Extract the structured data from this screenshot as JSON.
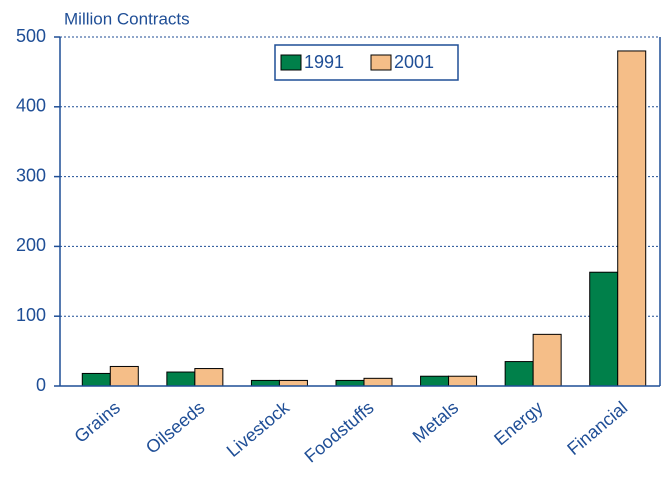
{
  "chart_data": {
    "type": "bar",
    "title": "Million Contracts",
    "categories": [
      "Grains",
      "Oilseeds",
      "Livestock",
      "Foodstuffs",
      "Metals",
      "Energy",
      "Financial"
    ],
    "series": [
      {
        "name": "1991",
        "color": "#00804a",
        "values": [
          18,
          20,
          8,
          8,
          14,
          35,
          163
        ]
      },
      {
        "name": "2001",
        "color": "#f5be88",
        "values": [
          28,
          25,
          8,
          11,
          14,
          74,
          480
        ]
      }
    ],
    "ylim": [
      0,
      500
    ],
    "yticks": [
      0,
      100,
      200,
      300,
      400,
      500
    ],
    "grid": true,
    "legend": "top"
  }
}
